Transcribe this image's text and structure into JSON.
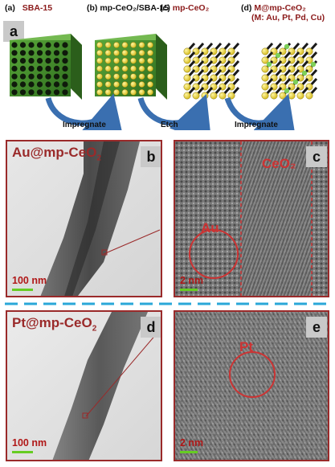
{
  "top_labels": {
    "a": "(a)",
    "a_name": "SBA-15",
    "b": "(b)",
    "b_name": "mp-CeO₂/SBA-15",
    "c": "(c)",
    "c_name": "mp-CeO₂",
    "d": "(d)",
    "d_name": "M@mp-CeO₂",
    "d_sub": "(M: Au, Pt, Pd, Cu)"
  },
  "panel_letters": {
    "a": "a",
    "b": "b",
    "c": "c",
    "d": "d",
    "e": "e"
  },
  "arrows": {
    "first": "Impregnate",
    "second": "Etch",
    "third": "Impregnate"
  },
  "tem_top": {
    "sample_main": "Au@mp-CeO",
    "sample_sub": "2",
    "scale_left": "100 nm",
    "scale_right": "2 nm",
    "label_ceo2": "CeO₂",
    "label_metal": "Au"
  },
  "tem_bottom": {
    "sample_main": "Pt@mp-CeO",
    "sample_sub": "2",
    "scale_left": "100 nm",
    "scale_right": "2 nm",
    "label_metal": "Pt"
  },
  "colors": {
    "sba_green": "#3f8a2a",
    "dot_yellow": "#e8d23a",
    "divider_blue": "#2aa7d8",
    "frame_red": "#9a2a2a",
    "arrow_blue": "#3a6fb0",
    "scale_green": "#66cc22"
  }
}
